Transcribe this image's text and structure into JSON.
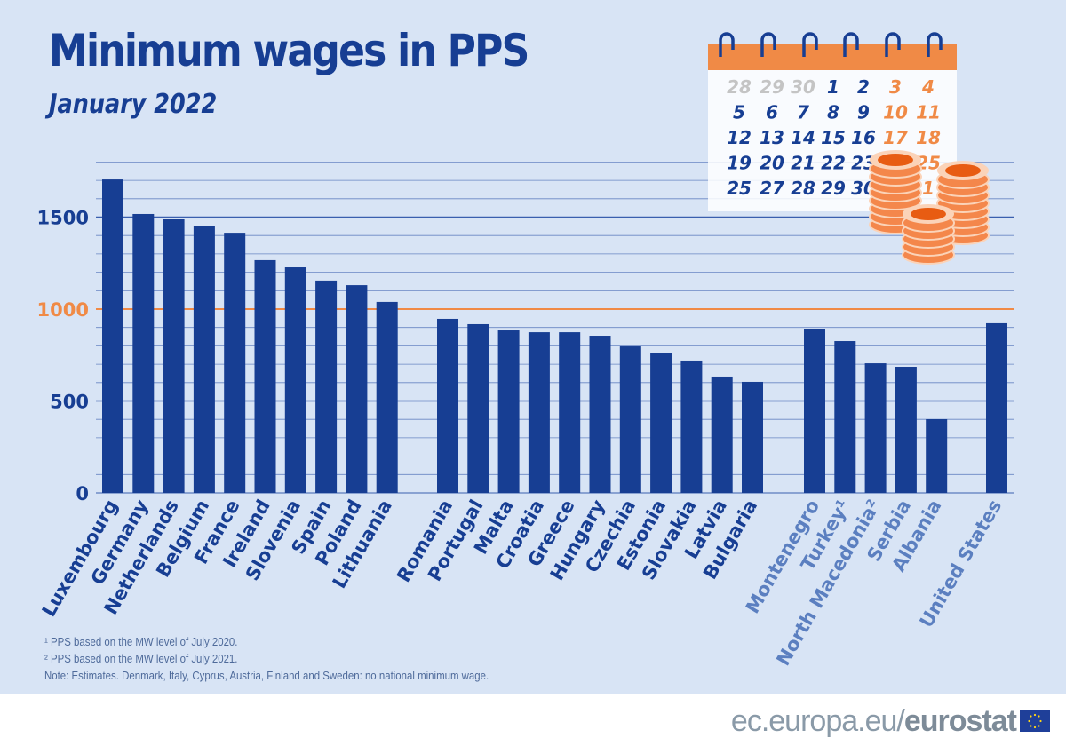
{
  "title": "Minimum wages in PPS",
  "subtitle": "January 2022",
  "notes": [
    "¹ PPS based on the MW level of July 2020.",
    "² PPS based on the MW level of July 2021.",
    "Note: Estimates. Denmark, Italy, Cyprus, Austria, Finland and Sweden: no national minimum wage."
  ],
  "footer": {
    "site": "ec.europa.eu/",
    "brand": "eurostat"
  },
  "calendar": {
    "rows": [
      [
        "28",
        "29",
        "30",
        "1",
        "2",
        "3",
        "4"
      ],
      [
        "5",
        "6",
        "7",
        "8",
        "9",
        "10",
        "11"
      ],
      [
        "12",
        "13",
        "14",
        "15",
        "16",
        "17",
        "18"
      ],
      [
        "19",
        "20",
        "21",
        "22",
        "23",
        "24",
        "25"
      ],
      [
        "25",
        "27",
        "28",
        "29",
        "30",
        "31",
        "1"
      ]
    ]
  },
  "colors": {
    "bar": "#173e93",
    "reference_line": "#f08a46",
    "grid": "#3a5fae",
    "label_group_eu": "#173e93",
    "label_group_other": "#5b7fc0",
    "accent": "#f08a46"
  },
  "chart_data": {
    "type": "bar",
    "title": "Minimum wages in PPS",
    "subtitle": "January 2022",
    "ylim": [
      0,
      1800
    ],
    "yticks": [
      "0",
      "500",
      "1000",
      "1500"
    ],
    "ytick_values": [
      0,
      500,
      1000,
      1500
    ],
    "reference_line": 1000,
    "grid": true,
    "groups": [
      {
        "categories": [
          "Luxembourg",
          "Germany",
          "Netherlands",
          "Belgium",
          "France",
          "Ireland",
          "Slovenia",
          "Spain",
          "Poland",
          "Lithuania"
        ],
        "values": [
          1705,
          1517,
          1488,
          1454,
          1415,
          1266,
          1227,
          1155,
          1130,
          1039
        ]
      },
      {
        "categories": [
          "Romania",
          "Portugal",
          "Malta",
          "Croatia",
          "Greece",
          "Hungary",
          "Czechia",
          "Estonia",
          "Slovakia",
          "Latvia",
          "Bulgaria"
        ],
        "values": [
          947,
          918,
          884,
          874,
          874,
          855,
          797,
          763,
          720,
          633,
          604
        ]
      },
      {
        "categories": [
          "Montenegro",
          "Turkey¹",
          "North Macedonia²",
          "Serbia",
          "Albania"
        ],
        "values": [
          889,
          826,
          705,
          686,
          401
        ]
      },
      {
        "categories": [
          "United States"
        ],
        "values": [
          923
        ]
      }
    ]
  }
}
